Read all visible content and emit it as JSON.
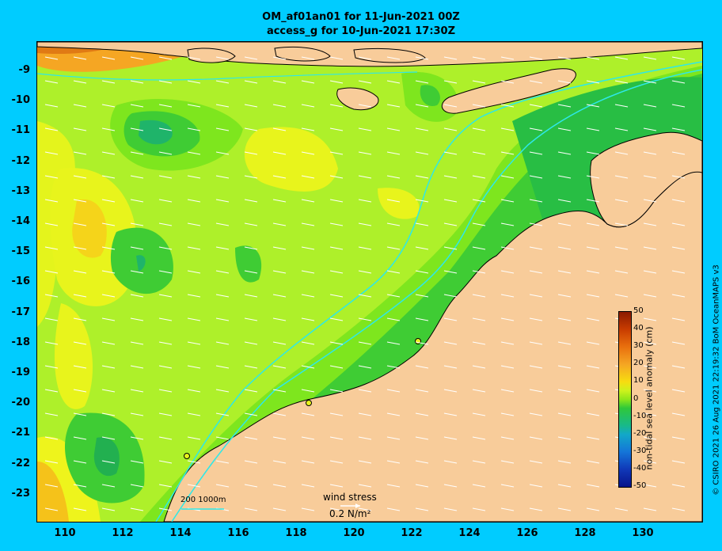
{
  "title_line1": "OM_af01an01 for 11-Jun-2021 00Z",
  "title_line2": "access_g for 10-Jun-2021 17:30Z",
  "y_ticks": [
    "-9",
    "-10",
    "-11",
    "-12",
    "-13",
    "-14",
    "-15",
    "-16",
    "-17",
    "-18",
    "-19",
    "-20",
    "-21",
    "-22",
    "-23"
  ],
  "x_ticks": [
    "110",
    "112",
    "114",
    "116",
    "118",
    "120",
    "122",
    "124",
    "126",
    "128",
    "130"
  ],
  "colorbar": {
    "label": "non-tidal sea level anomaly (cm)",
    "ticks": [
      "50",
      "40",
      "30",
      "20",
      "10",
      "0",
      "-10",
      "-20",
      "-30",
      "-40",
      "-50"
    ]
  },
  "depth_legend": "200  1000m",
  "wind_stress": {
    "title": "wind stress",
    "value": "0.2 N/m²"
  },
  "credit": "© CSIRO 2021  26 Aug 2021 22:19:32 BoM OceanMAPS v3",
  "colors": {
    "background": "#00ccff",
    "land": "#f8cc9a",
    "contour": "#2ee8e8"
  }
}
